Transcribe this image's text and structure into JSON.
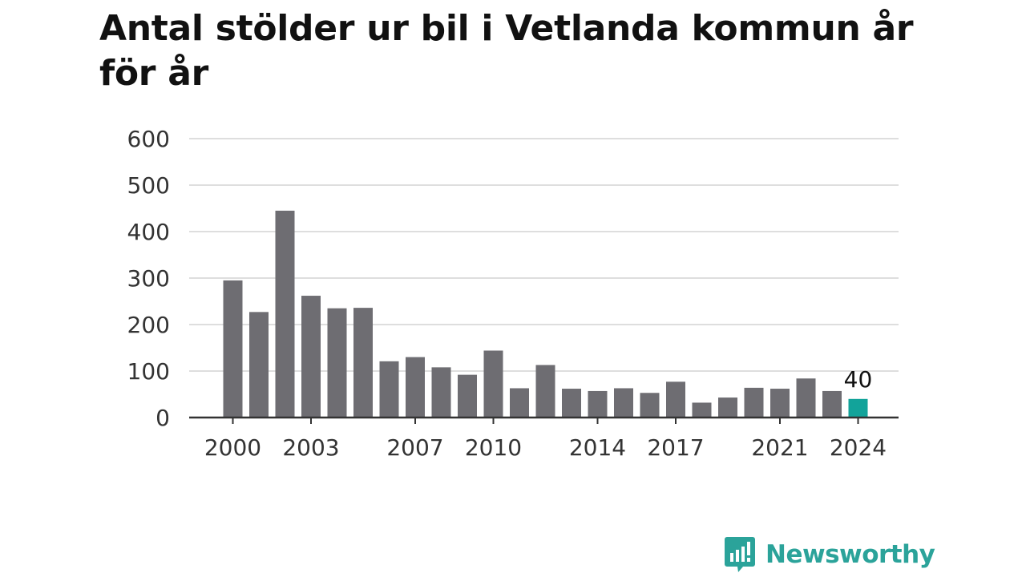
{
  "title": "Antal stölder ur bil i Vetlanda kommun år för år",
  "brand": {
    "name": "Newsworthy",
    "icon": "newsworthy-logo-icon",
    "color": "#2ba39a"
  },
  "colors": {
    "bar": "#6e6d72",
    "highlight": "#12a39a",
    "grid": "#dedede",
    "axis": "#333333"
  },
  "chart_data": {
    "type": "bar",
    "title": "Antal stölder ur bil i Vetlanda kommun år för år",
    "xlabel": "",
    "ylabel": "",
    "categories": [
      2000,
      2001,
      2002,
      2003,
      2004,
      2005,
      2006,
      2007,
      2008,
      2009,
      2010,
      2011,
      2012,
      2013,
      2014,
      2015,
      2016,
      2017,
      2018,
      2019,
      2020,
      2021,
      2022,
      2023,
      2024
    ],
    "values": [
      295,
      227,
      445,
      262,
      235,
      236,
      121,
      130,
      108,
      92,
      144,
      63,
      113,
      62,
      57,
      63,
      53,
      77,
      32,
      43,
      64,
      62,
      84,
      57,
      40
    ],
    "ylim": [
      0,
      600
    ],
    "yticks": [
      0,
      100,
      200,
      300,
      400,
      500,
      600
    ],
    "xticks": [
      2000,
      2003,
      2007,
      2010,
      2014,
      2017,
      2021,
      2024
    ],
    "highlight": {
      "category": 2024,
      "value": 40,
      "label": "40"
    },
    "grid": true,
    "legend": "none"
  }
}
